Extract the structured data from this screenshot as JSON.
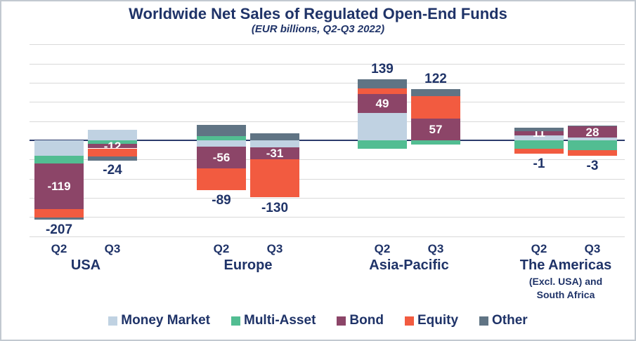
{
  "title": "Worldwide Net Sales of Regulated Open-End Funds",
  "subtitle": "(EUR billions, Q2-Q3 2022)",
  "colors": {
    "money_market": "#c0d2e2",
    "multi_asset": "#52bd92",
    "bond": "#8c4568",
    "equity": "#f25b40",
    "other": "#607484",
    "text_navy": "#1f3368",
    "zero_line": "#2b3b6c",
    "gridline": "#d9d9d9",
    "inside_label": "#ffffff",
    "frame_border": "#c2c9d0"
  },
  "legend": [
    {
      "label": "Money Market",
      "color_key": "money_market"
    },
    {
      "label": "Multi-Asset",
      "color_key": "multi_asset"
    },
    {
      "label": "Bond",
      "color_key": "bond"
    },
    {
      "label": "Equity",
      "color_key": "equity"
    },
    {
      "label": "Other",
      "color_key": "other"
    }
  ],
  "chart_data": {
    "type": "bar",
    "stacked": true,
    "unit": "EUR billions",
    "period": "Q2-Q3 2022",
    "ylim": [
      -250,
      250
    ],
    "gridline_step": 50,
    "grid": true,
    "legend_position": "bottom",
    "series_order": [
      "Money Market",
      "Multi-Asset",
      "Bond",
      "Equity",
      "Other"
    ],
    "note": "Segment values without printed labels are estimated from pixel heights; totals and Bond labels are printed on the chart.",
    "groups": [
      {
        "name": "USA",
        "sublabels": [],
        "bars": [
          {
            "quarter": "Q2",
            "total": -207,
            "total_label": "-207",
            "segments": [
              {
                "series": "Money Market",
                "value": -40
              },
              {
                "series": "Multi-Asset",
                "value": -20
              },
              {
                "series": "Bond",
                "value": -119,
                "label": "-119"
              },
              {
                "series": "Equity",
                "value": -22
              },
              {
                "series": "Other",
                "value": -6
              }
            ]
          },
          {
            "quarter": "Q3",
            "total": -24,
            "total_label": "-24",
            "segments": [
              {
                "series": "Money Market",
                "value": 28
              },
              {
                "series": "Multi-Asset",
                "value": -9
              },
              {
                "series": "Bond",
                "value": -12,
                "label": "-12"
              },
              {
                "series": "Equity",
                "value": -21
              },
              {
                "series": "Other",
                "value": -10
              }
            ]
          }
        ]
      },
      {
        "name": "Europe",
        "sublabels": [],
        "bars": [
          {
            "quarter": "Q2",
            "total": -89,
            "total_label": "-89",
            "segments": [
              {
                "series": "Multi-Asset",
                "value": 11
              },
              {
                "series": "Other",
                "value": 30
              },
              {
                "series": "Money Market",
                "value": -17
              },
              {
                "series": "Bond",
                "value": -56,
                "label": "-56"
              },
              {
                "series": "Equity",
                "value": -57
              }
            ]
          },
          {
            "quarter": "Q3",
            "total": -130,
            "total_label": "-130",
            "segments": [
              {
                "series": "Other",
                "value": 19
              },
              {
                "series": "Money Market",
                "value": -18
              },
              {
                "series": "Bond",
                "value": -31,
                "label": "-31"
              },
              {
                "series": "Equity",
                "value": -100
              }
            ]
          }
        ]
      },
      {
        "name": "Asia-Pacific",
        "sublabels": [],
        "bars": [
          {
            "quarter": "Q2",
            "total": 139,
            "total_label": "139",
            "segments": [
              {
                "series": "Money Market",
                "value": 72
              },
              {
                "series": "Bond",
                "value": 49,
                "label": "49"
              },
              {
                "series": "Equity",
                "value": 14
              },
              {
                "series": "Other",
                "value": 25
              },
              {
                "series": "Multi-Asset",
                "value": -21
              }
            ]
          },
          {
            "quarter": "Q3",
            "total": 122,
            "total_label": "122",
            "segments": [
              {
                "series": "Bond",
                "value": 57,
                "label": "57"
              },
              {
                "series": "Equity",
                "value": 58
              },
              {
                "series": "Other",
                "value": 18
              },
              {
                "series": "Multi-Asset",
                "value": -11
              }
            ]
          }
        ]
      },
      {
        "name": "The Americas",
        "sublabels": [
          "(Excl. USA) and",
          "South Africa"
        ],
        "bars": [
          {
            "quarter": "Q2",
            "total": -1,
            "total_label": "-1",
            "segments": [
              {
                "series": "Money Market",
                "value": 13
              },
              {
                "series": "Bond",
                "value": 11,
                "label": "11"
              },
              {
                "series": "Other",
                "value": 9
              },
              {
                "series": "Multi-Asset",
                "value": -22
              },
              {
                "series": "Equity",
                "value": -12
              }
            ]
          },
          {
            "quarter": "Q3",
            "total": -3,
            "total_label": "-3",
            "segments": [
              {
                "series": "Money Market",
                "value": 8
              },
              {
                "series": "Bond",
                "value": 28,
                "label": "28"
              },
              {
                "series": "Other",
                "value": 2
              },
              {
                "series": "Multi-Asset",
                "value": -26
              },
              {
                "series": "Equity",
                "value": -15
              }
            ]
          }
        ]
      }
    ]
  }
}
